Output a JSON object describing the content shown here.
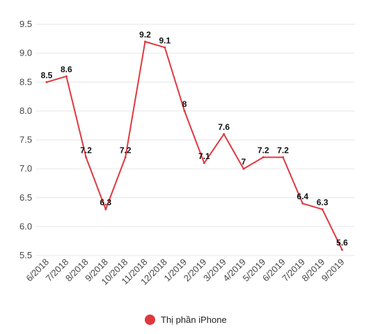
{
  "chart_data": {
    "type": "line",
    "categories": [
      "6/2018",
      "7/2018",
      "8/2018",
      "9/2018",
      "10/2018",
      "11/2018",
      "12/2018",
      "1/2019",
      "2/2019",
      "3/2019",
      "4/2019",
      "5/2019",
      "6/2019",
      "7/2019",
      "8/2019",
      "9/2019"
    ],
    "series": [
      {
        "name": "Thị phần iPhone",
        "values": [
          8.5,
          8.6,
          7.2,
          6.3,
          7.2,
          9.2,
          9.1,
          8,
          7.1,
          7.6,
          7,
          7.2,
          7.2,
          6.4,
          6.3,
          5.6
        ],
        "data_labels": [
          "8.5",
          "8.6",
          "7.2",
          "6.3",
          "7.2",
          "9.2",
          "9.1",
          "8",
          "7.1",
          "7.6",
          "7",
          "7.2",
          "7.2",
          "6.4",
          "6.3",
          "5.6"
        ],
        "color": "#e0373f"
      }
    ],
    "y_ticks": [
      "5.5",
      "6.0",
      "6.5",
      "7.0",
      "7.5",
      "8.0",
      "8.5",
      "9.0",
      "9.5"
    ],
    "ylim": [
      5.5,
      9.5
    ],
    "grid": "horizontal",
    "legend": "bottom-center",
    "gridline_color": "#e6e6e6"
  }
}
